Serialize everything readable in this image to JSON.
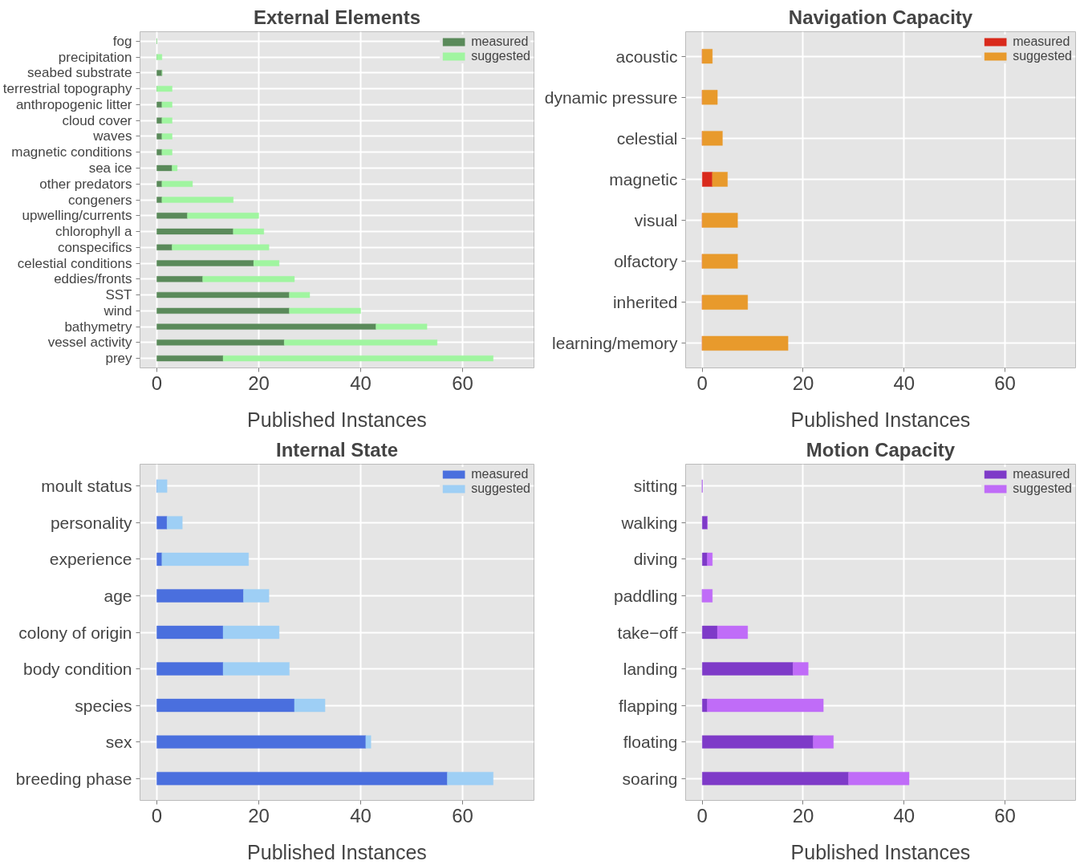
{
  "chart_data": [
    {
      "type": "bar",
      "orientation": "horizontal",
      "stacked": true,
      "title": "External Elements",
      "xlabel": "Published Instances",
      "categories": [
        "fog",
        "precipitation",
        "seabed substrate",
        "terrestrial topography",
        "anthropogenic litter",
        "cloud cover",
        "waves",
        "magnetic conditions",
        "sea ice",
        "other predators",
        "congeners",
        "upwelling/currents",
        "chlorophyll a",
        "conspecifics",
        "celestial conditions",
        "eddies/fronts",
        "SST",
        "wind",
        "bathymetry",
        "vessel activity",
        "prey"
      ],
      "series": [
        {
          "name": "measured",
          "color": "#5a8a5a",
          "values": [
            0,
            0,
            1,
            0,
            1,
            1,
            1,
            1,
            3,
            1,
            1,
            6,
            15,
            3,
            19,
            9,
            26,
            26,
            43,
            25,
            13
          ]
        },
        {
          "name": "suggested",
          "color": "#a0f5a0",
          "values": [
            0,
            1,
            0,
            3,
            2,
            2,
            2,
            2,
            1,
            6,
            14,
            14,
            6,
            19,
            5,
            18,
            4,
            14,
            10,
            30,
            53
          ]
        }
      ],
      "xlim": [
        -3.3,
        74
      ],
      "xticks": [
        0,
        20,
        40,
        60
      ],
      "grid": true,
      "legend": "top right"
    },
    {
      "type": "bar",
      "orientation": "horizontal",
      "stacked": true,
      "title": "Navigation Capacity",
      "xlabel": "Published Instances",
      "categories": [
        "acoustic",
        "dynamic pressure",
        "celestial",
        "magnetic",
        "visual",
        "olfactory",
        "inherited",
        "learning/memory"
      ],
      "series": [
        {
          "name": "measured",
          "color": "#d92a1c",
          "values": [
            0,
            0,
            0,
            2,
            0,
            0,
            0,
            0
          ]
        },
        {
          "name": "suggested",
          "color": "#e89a2c",
          "values": [
            2,
            3,
            4,
            3,
            7,
            7,
            9,
            17
          ]
        }
      ],
      "xlim": [
        -3.3,
        74
      ],
      "xticks": [
        0,
        20,
        40,
        60
      ],
      "grid": true,
      "legend": "top right"
    },
    {
      "type": "bar",
      "orientation": "horizontal",
      "stacked": true,
      "title": "Internal State",
      "xlabel": "Published Instances",
      "categories": [
        "moult status",
        "personality",
        "experience",
        "age",
        "colony of origin",
        "body condition",
        "species",
        "sex",
        "breeding phase"
      ],
      "series": [
        {
          "name": "measured",
          "color": "#4a6fde",
          "values": [
            0,
            2,
            1,
            17,
            13,
            13,
            27,
            41,
            57
          ]
        },
        {
          "name": "suggested",
          "color": "#9ecff5",
          "values": [
            2,
            3,
            17,
            5,
            11,
            13,
            6,
            1,
            9
          ]
        }
      ],
      "xlim": [
        -3.3,
        74
      ],
      "xticks": [
        0,
        20,
        40,
        60
      ],
      "grid": true,
      "legend": "top right"
    },
    {
      "type": "bar",
      "orientation": "horizontal",
      "stacked": true,
      "title": "Motion Capacity",
      "xlabel": "Published Instances",
      "categories": [
        "sitting",
        "walking",
        "diving",
        "paddling",
        "take−off",
        "landing",
        "flapping",
        "floating",
        "soaring"
      ],
      "series": [
        {
          "name": "measured",
          "color": "#7e3ac8",
          "values": [
            0,
            1,
            1,
            0,
            3,
            18,
            1,
            22,
            29
          ]
        },
        {
          "name": "suggested",
          "color": "#c06cf8",
          "values": [
            0,
            0,
            1,
            2,
            6,
            3,
            23,
            4,
            12
          ]
        }
      ],
      "xlim": [
        -3.3,
        74
      ],
      "xticks": [
        0,
        20,
        40,
        60
      ],
      "grid": true,
      "legend": "top right"
    }
  ]
}
